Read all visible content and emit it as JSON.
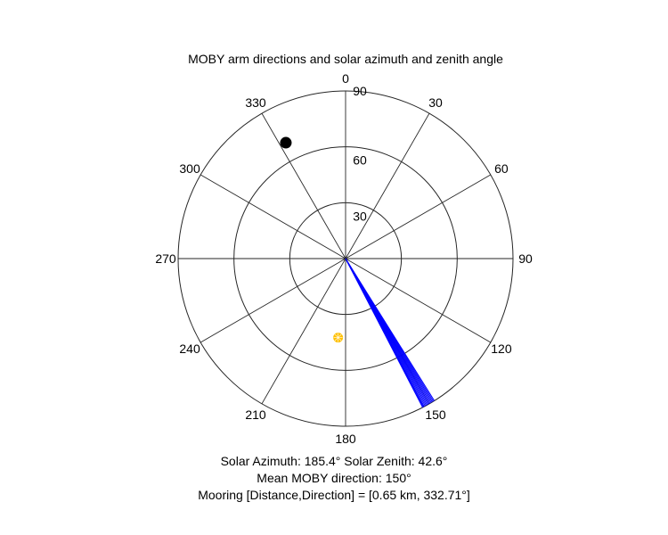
{
  "chart_data": {
    "type": "polar",
    "title": "MOBY arm directions and solar azimuth and zenith angle",
    "angle_direction": "clockwise",
    "angle_zero": "top",
    "theta_ticks": [
      "0",
      "30",
      "60",
      "90",
      "120",
      "150",
      "180",
      "210",
      "240",
      "270",
      "300",
      "330"
    ],
    "theta_tick_values": [
      0,
      30,
      60,
      90,
      120,
      150,
      180,
      210,
      240,
      270,
      300,
      330
    ],
    "r_ticks": [
      "30",
      "60",
      "90"
    ],
    "r_tick_values": [
      30,
      60,
      90
    ],
    "r_range": [
      0,
      90
    ],
    "grid": true,
    "series": [
      {
        "kind": "arm_lines",
        "color": "#0000ff",
        "r": 90,
        "directions_deg": [
          148.0,
          148.4,
          148.8,
          149.2,
          149.6,
          150.0,
          150.4,
          150.8,
          151.2,
          151.6,
          152.0,
          152.3,
          152.6
        ]
      },
      {
        "kind": "sun_marker",
        "color": "#ffc000",
        "azimuth_deg": 185.4,
        "zenith_deg": 42.6
      },
      {
        "kind": "mooring_marker",
        "color": "#000000",
        "direction_deg": 332.71,
        "r": 70
      }
    ]
  },
  "captions": {
    "line1": "Solar Azimuth: 185.4°    Solar Zenith: 42.6°",
    "line2": "Mean MOBY direction: 150°",
    "line3": "Mooring [Distance,Direction] = [0.65 km, 332.71°]"
  }
}
